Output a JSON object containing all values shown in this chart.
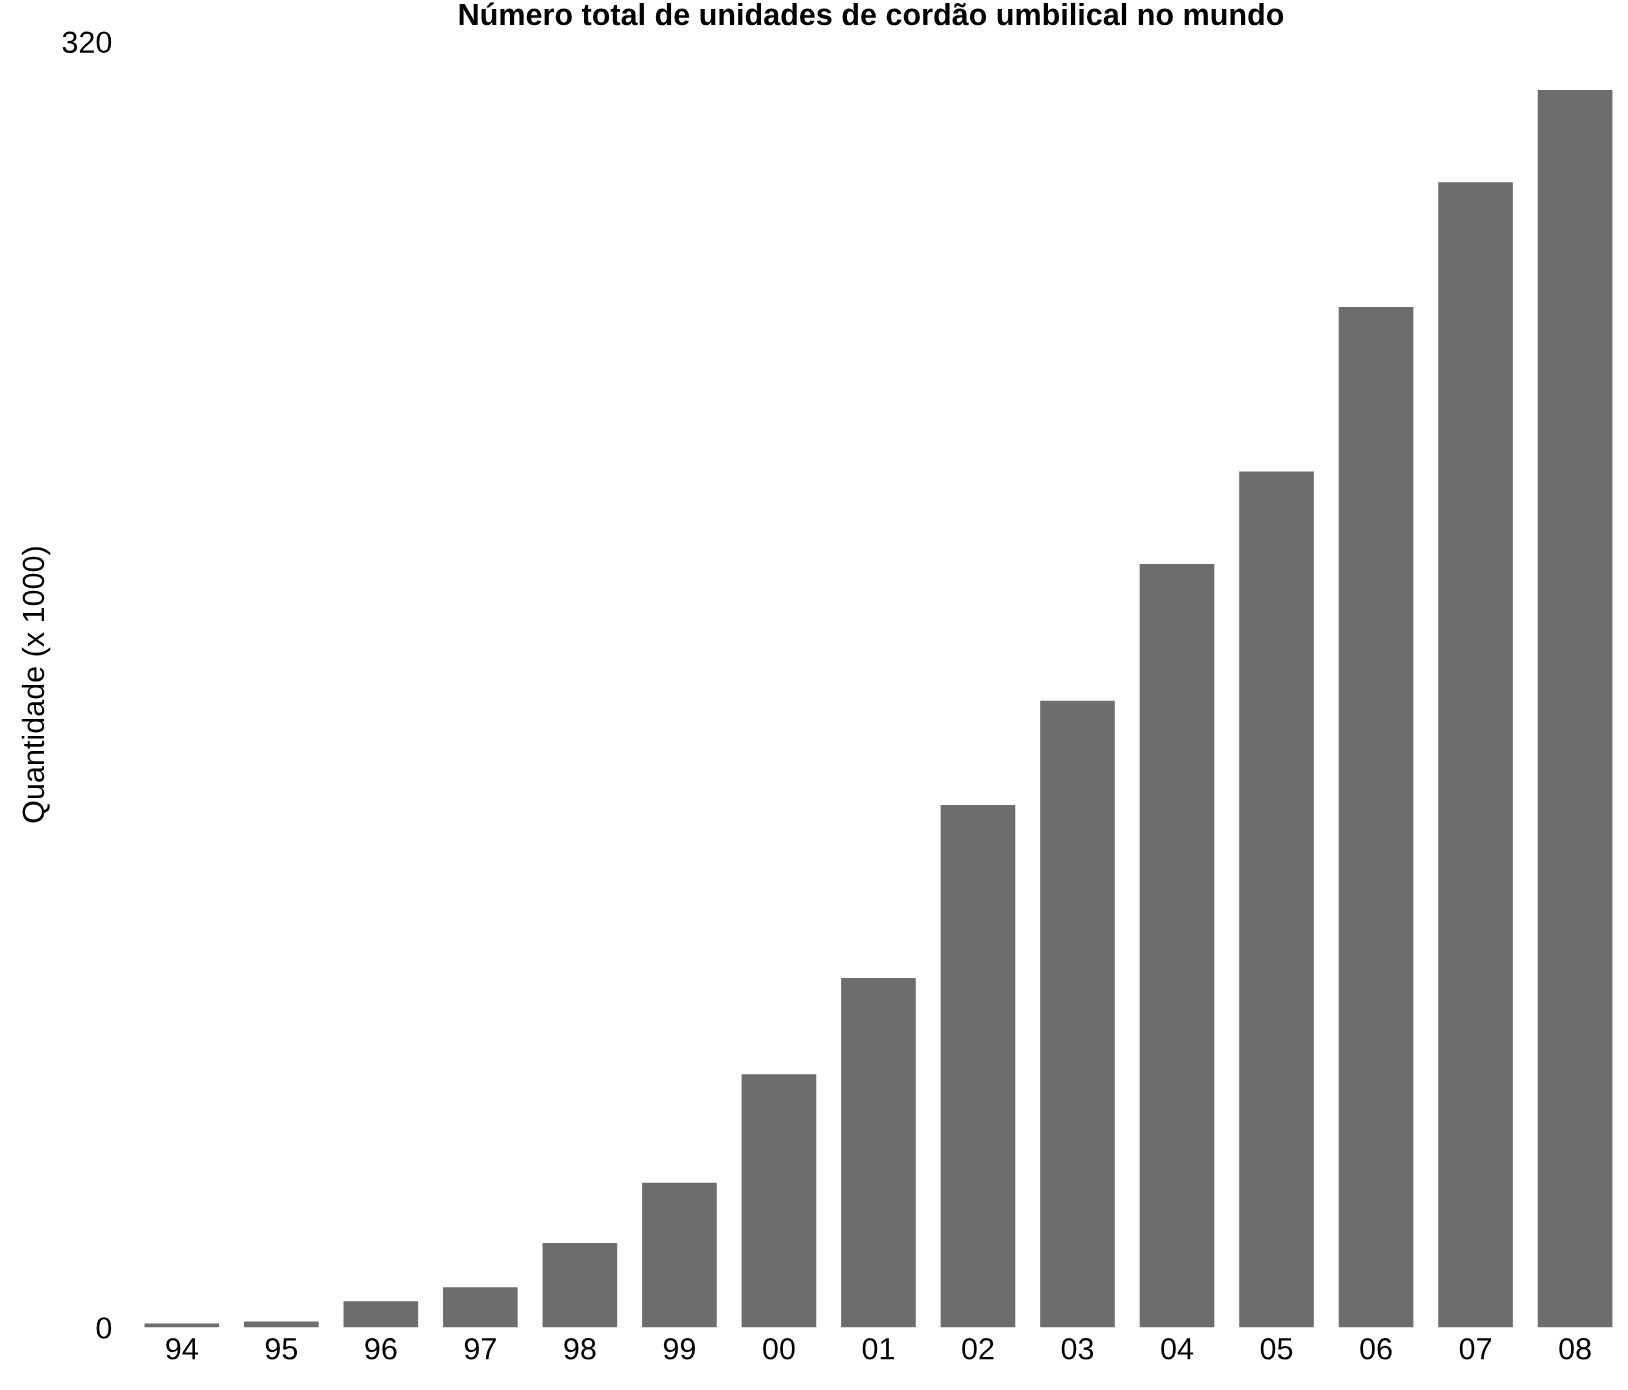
{
  "chart_data": {
    "type": "bar",
    "title": "Número total de unidades de cordão umbilical no mundo",
    "ylabel": "Quantidade (x 1000)",
    "categories": [
      "94",
      "95",
      "96",
      "97",
      "98",
      "99",
      "00",
      "01",
      "02",
      "03",
      "04",
      "05",
      "06",
      "07",
      "08"
    ],
    "values": [
      1,
      1.5,
      6.5,
      10,
      21,
      36,
      63,
      87,
      130,
      156,
      190,
      213,
      254,
      285,
      308
    ],
    "color": "#6d6d6d",
    "ylim": [
      0,
      320
    ],
    "yticks": [
      0,
      320
    ],
    "grid": false
  }
}
